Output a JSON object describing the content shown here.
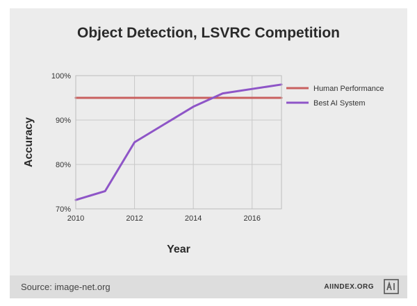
{
  "chart_data": {
    "type": "line",
    "title": "Object Detection, LSVRC Competition",
    "xlabel": "Year",
    "ylabel": "Accuracy",
    "xlim": [
      2010,
      2017
    ],
    "ylim": [
      70,
      100
    ],
    "xticks": [
      "2010",
      "2012",
      "2014",
      "2016"
    ],
    "xtick_values": [
      2010,
      2012,
      2014,
      2016
    ],
    "yticks": [
      "70%",
      "80%",
      "90%",
      "100%"
    ],
    "ytick_values": [
      70,
      80,
      90,
      100
    ],
    "grid": true,
    "legend": "right",
    "series": [
      {
        "name": "Human Performance",
        "color": "#c9605f",
        "x": [
          2010,
          2017
        ],
        "y": [
          95,
          95
        ]
      },
      {
        "name": "Best AI System",
        "color": "#8e55c7",
        "x": [
          2010,
          2011,
          2012,
          2013,
          2014,
          2015,
          2016,
          2017
        ],
        "y": [
          72,
          74,
          85,
          89,
          93,
          96,
          97,
          98
        ]
      }
    ]
  },
  "footer": {
    "source": "Source: image-net.org",
    "brand": "AIINDEX.ORG",
    "logo_icon": "ai-index-logo-icon"
  }
}
